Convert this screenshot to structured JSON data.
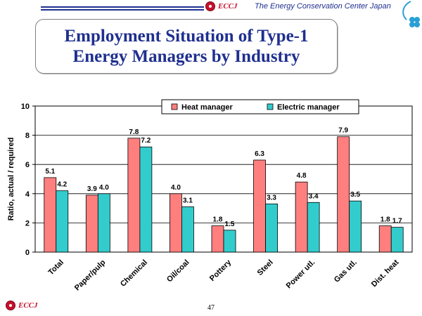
{
  "header": {
    "logo_text": "ECCJ",
    "organization": "The Energy Conservation Center Japan"
  },
  "slide": {
    "title_line1": "Employment Situation of Type-1",
    "title_line2": "Energy Managers by Industry"
  },
  "footer": {
    "logo_text": "ECCJ",
    "page_number": "47"
  },
  "colors": {
    "heat_manager": "#ff7f7f",
    "electric_manager": "#33cccc",
    "title": "#1f2f8f",
    "brand_red": "#c8102e"
  },
  "chart_data": {
    "type": "bar",
    "title": "",
    "xlabel": "",
    "ylabel": "Ratio, actual / required",
    "ylim": [
      0,
      10
    ],
    "yticks": [
      0,
      2,
      4,
      6,
      8,
      10
    ],
    "grid": true,
    "legend_position": "top-right",
    "categories": [
      "Total",
      "Paper/pulp",
      "Chemical",
      "Oil/coal",
      "Pottery",
      "Steel",
      "Power utl.",
      "Gas utl.",
      "Dist. heat"
    ],
    "series": [
      {
        "name": "Heat manager",
        "values": [
          5.1,
          3.9,
          7.8,
          4.0,
          1.8,
          6.3,
          4.8,
          7.9,
          1.8
        ],
        "labels": [
          "5.1",
          "3.9",
          "7.8",
          "4.0",
          "1.8",
          "6.3",
          "4.8",
          "7.9",
          "1.8"
        ]
      },
      {
        "name": "Electric manager",
        "values": [
          4.2,
          4.0,
          7.2,
          3.1,
          1.5,
          3.3,
          3.4,
          3.5,
          1.7
        ],
        "labels": [
          "4.2",
          "4.0",
          "7.2",
          "3.1",
          "1.5",
          "3.3",
          "3.4",
          "3.5",
          "1.7"
        ]
      }
    ]
  }
}
